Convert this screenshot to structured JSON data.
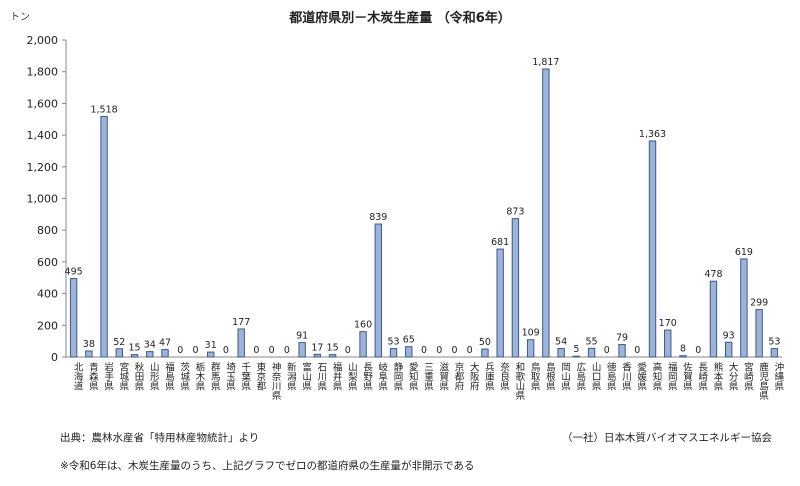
{
  "chart_data": {
    "type": "bar",
    "title": "都道府県別－木炭生産量 （令和6年）",
    "ylabel": "トン",
    "ylim": [
      0,
      2000
    ],
    "yticks": [
      "0",
      "200",
      "400",
      "600",
      "800",
      "1,000",
      "1,200",
      "1,400",
      "1,600",
      "1,800",
      "2,000"
    ],
    "grid": false,
    "categories": [
      "北海道",
      "青森県",
      "岩手県",
      "宮城県",
      "秋田県",
      "山形県",
      "福島県",
      "茨城県",
      "栃木県",
      "群馬県",
      "埼玉県",
      "千葉県",
      "東京都",
      "神奈川県",
      "新潟県",
      "富山県",
      "石川県",
      "福井県",
      "山梨県",
      "長野県",
      "岐阜県",
      "静岡県",
      "愛知県",
      "三重県",
      "滋賀県",
      "京都府",
      "大阪府",
      "兵庫県",
      "奈良県",
      "和歌山県",
      "鳥取県",
      "島根県",
      "岡山県",
      "広島県",
      "山口県",
      "徳島県",
      "香川県",
      "愛媛県",
      "高知県",
      "福岡県",
      "佐賀県",
      "長崎県",
      "熊本県",
      "大分県",
      "宮崎県",
      "鹿児島県",
      "沖縄県"
    ],
    "values": [
      495,
      38,
      1518,
      52,
      15,
      34,
      47,
      0,
      0,
      31,
      0,
      177,
      0,
      0,
      0,
      91,
      17,
      15,
      0,
      160,
      839,
      53,
      65,
      0,
      0,
      0,
      0,
      50,
      681,
      873,
      109,
      1817,
      54,
      5,
      55,
      0,
      79,
      0,
      1363,
      170,
      8,
      0,
      478,
      93,
      619,
      299,
      53
    ],
    "value_labels": [
      "495",
      "38",
      "1,518",
      "52",
      "15",
      "34",
      "47",
      "0",
      "0",
      "31",
      "0",
      "177",
      "0",
      "0",
      "0",
      "91",
      "17",
      "15",
      "0",
      "160",
      "839",
      "53",
      "65",
      "0",
      "0",
      "0",
      "0",
      "50",
      "681",
      "873",
      "109",
      "1,817",
      "54",
      "5",
      "55",
      "0",
      "79",
      "0",
      "1,363",
      "170",
      "8",
      "0",
      "478",
      "93",
      "619",
      "299",
      "53"
    ],
    "colors": {
      "bar_fill": "#9db3d9",
      "bar_stroke": "#3d5a8c"
    }
  },
  "notes": {
    "source": "出典：農林水産省「特用林産物統計」より",
    "org": "（一社）日本木質バイオマスエネルギー協会",
    "footnote": "※令和6年は、木炭生産量のうち、上記グラフでゼロの都道府県の生産量が非開示である"
  }
}
